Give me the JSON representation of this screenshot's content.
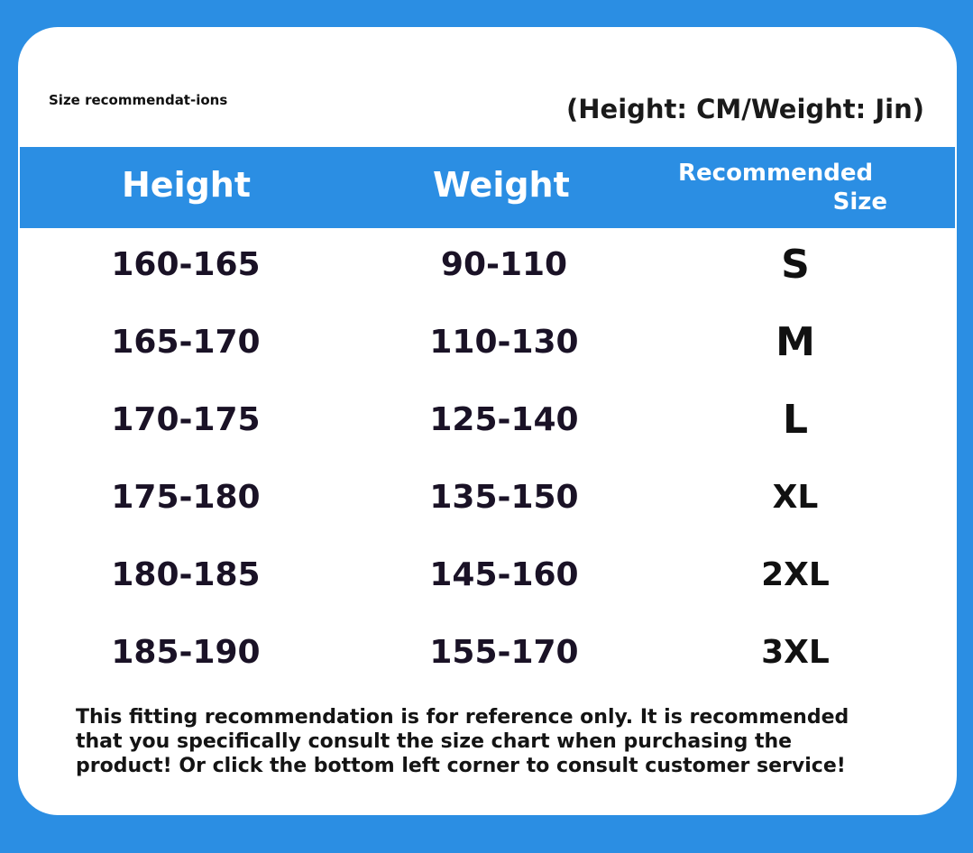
{
  "header": {
    "small_title": "Size recommendat-ions",
    "units": "(Height: CM/Weight: Jin)"
  },
  "table": {
    "columns": [
      "Height",
      "Weight",
      "Recommended",
      "Size"
    ],
    "rows": [
      {
        "height": "160-165",
        "weight": "90-110",
        "size": "S"
      },
      {
        "height": "165-170",
        "weight": "110-130",
        "size": "M"
      },
      {
        "height": "170-175",
        "weight": "125-140",
        "size": "L"
      },
      {
        "height": "175-180",
        "weight": "135-150",
        "size": "XL"
      },
      {
        "height": "180-185",
        "weight": "145-160",
        "size": "2XL"
      },
      {
        "height": "185-190",
        "weight": "155-170",
        "size": "3XL"
      }
    ]
  },
  "footer": {
    "note": "This fitting recommendation is for reference only. It is recommended that you specifically consult the size chart when purchasing the product! Or click the bottom left corner to consult customer service!"
  },
  "colors": {
    "accent_blue": "#2b8ee3",
    "card_bg": "#ffffff",
    "text": "#1a1226"
  }
}
